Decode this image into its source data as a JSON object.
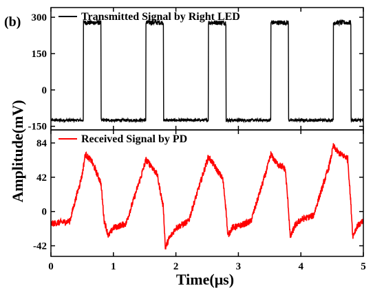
{
  "panel_label": "(b)",
  "chart_data": [
    {
      "type": "line",
      "title": "",
      "ylabel": "Amplitude(mV)",
      "xlim": [
        0,
        5
      ],
      "ylim": [
        -165,
        340
      ],
      "yticks": [
        -150,
        0,
        150,
        300
      ],
      "ytick_labels": [
        "-150",
        "0",
        "150",
        "300"
      ],
      "legend_position": "top-left",
      "grid": false,
      "series": [
        {
          "name": "Transmitted Signal by Right LED",
          "color": "#000000",
          "waveform": "square",
          "low": -125,
          "high": 278,
          "pulses": [
            [
              0.52,
              0.8
            ],
            [
              1.52,
              1.8
            ],
            [
              2.52,
              2.8
            ],
            [
              3.52,
              3.8
            ],
            [
              4.52,
              4.8
            ]
          ],
          "noise_low": 6,
          "noise_high": 10
        }
      ]
    },
    {
      "type": "line",
      "title": "",
      "xlabel": "Time(μs)",
      "ylabel": "Amplitude(mV)",
      "xlim": [
        0,
        5
      ],
      "ylim": [
        -55,
        100
      ],
      "xticks": [
        0,
        1,
        2,
        3,
        4,
        5
      ],
      "xtick_labels": [
        "0",
        "1",
        "2",
        "3",
        "4",
        "5"
      ],
      "yticks": [
        -42,
        0,
        42,
        84
      ],
      "ytick_labels": [
        "-42",
        "0",
        "42",
        "84"
      ],
      "legend_position": "top-left",
      "grid": false,
      "series": [
        {
          "name": "Received Signal by PD",
          "color": "#ff0000",
          "x": [
            0,
            0.3,
            0.5,
            0.55,
            0.65,
            0.8,
            0.85,
            0.92,
            1.0,
            1.2,
            1.45,
            1.52,
            1.6,
            1.7,
            1.8,
            1.83,
            1.88,
            2.0,
            2.2,
            2.45,
            2.52,
            2.6,
            2.75,
            2.8,
            2.83,
            2.9,
            3.0,
            3.2,
            3.45,
            3.52,
            3.6,
            3.75,
            3.8,
            3.83,
            3.9,
            4.0,
            4.2,
            4.45,
            4.52,
            4.6,
            4.75,
            4.8,
            4.83,
            4.9,
            5.0
          ],
          "y": [
            -15,
            -12,
            45,
            70,
            62,
            35,
            -10,
            -30,
            -20,
            -15,
            45,
            63,
            57,
            45,
            5,
            -45,
            -35,
            -20,
            -12,
            50,
            67,
            58,
            40,
            5,
            -30,
            -20,
            -18,
            -12,
            50,
            70,
            60,
            52,
            5,
            -32,
            -18,
            -10,
            -5,
            55,
            80,
            72,
            65,
            10,
            -30,
            -18,
            -12
          ],
          "noise": 4
        }
      ]
    }
  ]
}
